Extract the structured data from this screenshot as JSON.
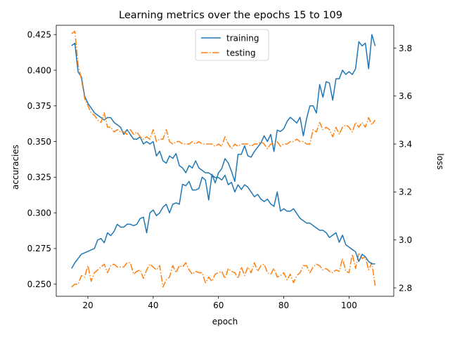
{
  "chart_data": {
    "type": "line",
    "title": "Learning metrics over the epochs 15 to 109",
    "xlabel": "epoch",
    "ylabel_left": "accuracies",
    "ylabel_right": "loss",
    "xlim": [
      10.3,
      113.7
    ],
    "ylim_left": [
      0.2415,
      0.4315
    ],
    "ylim_right": [
      2.765,
      3.895
    ],
    "x_ticks": [
      20,
      40,
      60,
      80,
      100
    ],
    "y_ticks_left": [
      0.25,
      0.275,
      0.3,
      0.325,
      0.35,
      0.375,
      0.4,
      0.425
    ],
    "y_ticks_right": [
      2.8,
      3.0,
      3.2,
      3.4,
      3.6,
      3.8
    ],
    "legend": {
      "placement": "top-center",
      "entries": [
        "training",
        "testing"
      ]
    },
    "colors": {
      "training": "#1f77b4",
      "testing": "#ff7f0e"
    },
    "series": [
      {
        "name": "training",
        "metric": "accuracy",
        "axis": "left",
        "style": "solid",
        "color": "#1f77b4",
        "x_start": 15,
        "values": [
          0.261,
          0.265,
          0.268,
          0.271,
          0.272,
          0.273,
          0.274,
          0.275,
          0.281,
          0.282,
          0.279,
          0.286,
          0.284,
          0.287,
          0.292,
          0.29,
          0.29,
          0.292,
          0.292,
          0.291,
          0.292,
          0.296,
          0.297,
          0.286,
          0.3,
          0.302,
          0.298,
          0.3,
          0.304,
          0.306,
          0.3,
          0.306,
          0.307,
          0.306,
          0.32,
          0.319,
          0.322,
          0.316,
          0.316,
          0.317,
          0.325,
          0.323,
          0.309,
          0.327,
          0.321,
          0.328,
          0.331,
          0.338,
          0.335,
          0.329,
          0.322,
          0.341,
          0.341,
          0.347,
          0.34,
          0.339,
          0.343,
          0.346,
          0.349,
          0.354,
          0.35,
          0.355,
          0.343,
          0.358,
          0.357,
          0.359,
          0.364,
          0.367,
          0.365,
          0.363,
          0.367,
          0.354,
          0.366,
          0.375,
          0.375,
          0.37,
          0.39,
          0.381,
          0.392,
          0.391,
          0.379,
          0.394,
          0.394,
          0.4,
          0.397,
          0.399,
          0.397,
          0.401,
          0.42,
          0.417,
          0.419,
          0.401,
          0.425,
          0.417
        ]
      },
      {
        "name": "testing",
        "metric": "accuracy",
        "axis": "left",
        "style": "dashdot",
        "color": "#ff7f0e",
        "x_start": 15,
        "values": [
          0.248,
          0.25,
          0.25,
          0.256,
          0.255,
          0.263,
          0.252,
          0.258,
          0.26,
          0.262,
          0.264,
          0.258,
          0.263,
          0.264,
          0.262,
          0.262,
          0.262,
          0.265,
          0.265,
          0.257,
          0.259,
          0.26,
          0.254,
          0.26,
          0.264,
          0.262,
          0.26,
          0.263,
          0.248,
          0.253,
          0.255,
          0.263,
          0.258,
          0.263,
          0.262,
          0.265,
          0.26,
          0.257,
          0.259,
          0.258,
          0.258,
          0.251,
          0.255,
          0.252,
          0.257,
          0.258,
          0.259,
          0.254,
          0.261,
          0.259,
          0.258,
          0.254,
          0.262,
          0.256,
          0.262,
          0.258,
          0.265,
          0.259,
          0.263,
          0.264,
          0.258,
          0.257,
          0.261,
          0.255,
          0.256,
          0.258,
          0.253,
          0.257,
          0.251,
          0.256,
          0.258,
          0.263,
          0.263,
          0.258,
          0.262,
          0.264,
          0.263,
          0.26,
          0.261,
          0.259,
          0.258,
          0.26,
          0.259,
          0.268,
          0.259,
          0.258,
          0.271,
          0.261,
          0.272,
          0.268,
          0.269,
          0.26,
          0.265,
          0.249
        ]
      },
      {
        "name": "training",
        "metric": "loss",
        "axis": "right",
        "style": "solid",
        "color": "#1f77b4",
        "x_start": 15,
        "values": [
          3.81,
          3.82,
          3.7,
          3.68,
          3.6,
          3.57,
          3.55,
          3.53,
          3.52,
          3.51,
          3.5,
          3.51,
          3.51,
          3.49,
          3.48,
          3.47,
          3.44,
          3.46,
          3.44,
          3.42,
          3.42,
          3.43,
          3.4,
          3.41,
          3.4,
          3.41,
          3.35,
          3.37,
          3.33,
          3.32,
          3.35,
          3.34,
          3.36,
          3.31,
          3.3,
          3.28,
          3.31,
          3.3,
          3.33,
          3.3,
          3.29,
          3.28,
          3.28,
          3.27,
          3.26,
          3.26,
          3.25,
          3.27,
          3.23,
          3.24,
          3.2,
          3.23,
          3.21,
          3.23,
          3.22,
          3.2,
          3.18,
          3.19,
          3.17,
          3.16,
          3.17,
          3.15,
          3.14,
          3.2,
          3.12,
          3.13,
          3.12,
          3.12,
          3.13,
          3.11,
          3.09,
          3.08,
          3.07,
          3.07,
          3.06,
          3.05,
          3.04,
          3.04,
          3.03,
          3.01,
          3.02,
          3.03,
          2.99,
          3.02,
          2.98,
          2.97,
          2.96,
          2.95,
          2.91,
          2.94,
          2.93,
          2.91,
          2.9,
          2.9
        ]
      },
      {
        "name": "testing",
        "metric": "loss",
        "axis": "right",
        "style": "dashdot",
        "color": "#ff7f0e",
        "x_start": 15,
        "values": [
          3.86,
          3.87,
          3.73,
          3.67,
          3.59,
          3.56,
          3.53,
          3.52,
          3.5,
          3.49,
          3.53,
          3.47,
          3.47,
          3.45,
          3.46,
          3.45,
          3.45,
          3.44,
          3.46,
          3.44,
          3.45,
          3.43,
          3.42,
          3.43,
          3.42,
          3.46,
          3.41,
          3.42,
          3.42,
          3.46,
          3.41,
          3.4,
          3.41,
          3.41,
          3.4,
          3.4,
          3.4,
          3.41,
          3.4,
          3.41,
          3.4,
          3.4,
          3.4,
          3.4,
          3.39,
          3.4,
          3.39,
          3.43,
          3.4,
          3.38,
          3.4,
          3.39,
          3.4,
          3.4,
          3.4,
          3.39,
          3.4,
          3.4,
          3.41,
          3.4,
          3.38,
          3.4,
          3.4,
          3.41,
          3.39,
          3.4,
          3.4,
          3.41,
          3.41,
          3.42,
          3.41,
          3.41,
          3.4,
          3.4,
          3.46,
          3.45,
          3.49,
          3.46,
          3.47,
          3.46,
          3.43,
          3.47,
          3.44,
          3.47,
          3.48,
          3.47,
          3.45,
          3.49,
          3.47,
          3.49,
          3.47,
          3.51,
          3.48,
          3.5
        ]
      }
    ]
  }
}
